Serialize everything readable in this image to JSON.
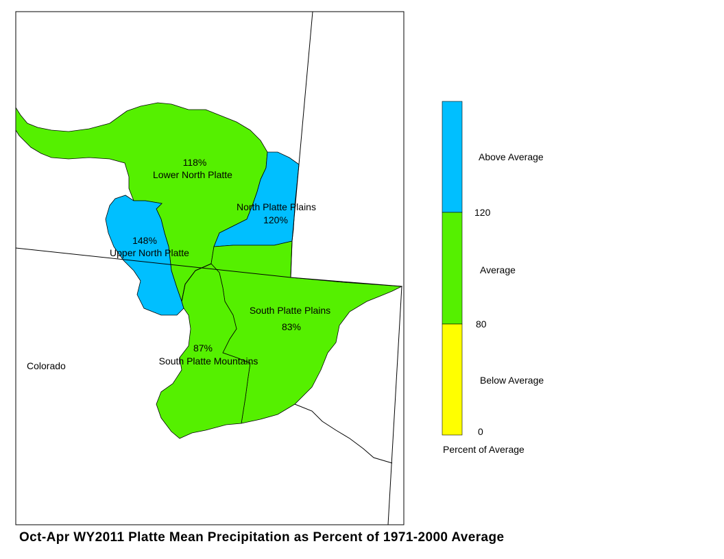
{
  "title": "Oct-Apr WY2011 Platte Mean Precipitation as Percent of 1971-2000 Average",
  "state_label": "Colorado",
  "colors": {
    "above": "#00BFFF",
    "average": "#55F000",
    "below": "#FFFF00"
  },
  "basins": [
    {
      "name": "Lower North Platte",
      "value": "118%",
      "category": "average"
    },
    {
      "name": "North Platte Plains",
      "value": "120%",
      "category": "above"
    },
    {
      "name": "Upper North Platte",
      "value": "148%",
      "category": "above"
    },
    {
      "name": "South Platte Plains",
      "value": "83%",
      "category": "average"
    },
    {
      "name": "South Platte Mountains",
      "value": "87%",
      "category": "average"
    }
  ],
  "legend": {
    "title": "Percent of Average",
    "classes": [
      {
        "label": "Above Average",
        "category": "above"
      },
      {
        "label": "Average",
        "category": "average"
      },
      {
        "label": "Below Average",
        "category": "below"
      }
    ],
    "breaks": [
      "120",
      "80",
      "0"
    ]
  }
}
